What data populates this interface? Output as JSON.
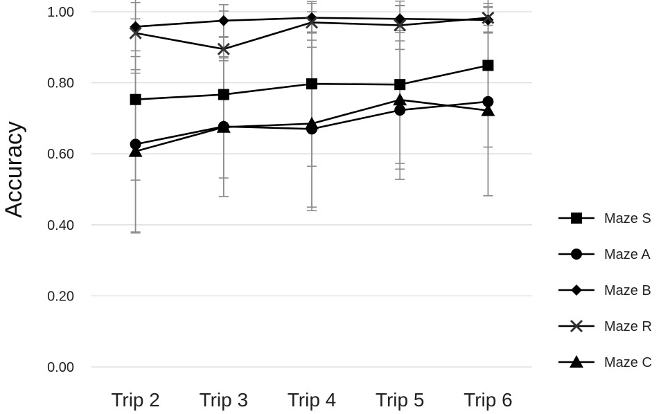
{
  "chart_data": {
    "type": "line",
    "title": "",
    "xlabel": "",
    "ylabel": "Accuracy",
    "categories": [
      "Trip 2",
      "Trip 3",
      "Trip 4",
      "Trip 5",
      "Trip 6"
    ],
    "ylim": [
      0,
      1
    ],
    "yticks": [
      "0.00",
      "0.20",
      "0.40",
      "0.60",
      "0.80",
      "1.00"
    ],
    "grid": "horizontal",
    "legend_position": "right",
    "series": [
      {
        "name": "Maze S",
        "marker": "square",
        "values": [
          0.753,
          0.767,
          0.797,
          0.795,
          0.849
        ],
        "error": [
          0.227,
          0.235,
          0.232,
          0.222,
          0.23
        ]
      },
      {
        "name": "Maze A",
        "marker": "circle",
        "values": [
          0.627,
          0.677,
          0.67,
          0.723,
          0.747
        ],
        "error": [
          0.247,
          0.197,
          0.23,
          0.195,
          0.265
        ]
      },
      {
        "name": "Maze B",
        "marker": "diamond",
        "values": [
          0.958,
          0.975,
          0.983,
          0.98,
          0.977
        ],
        "error": [
          0.068,
          0.045,
          0.04,
          0.038,
          0.037
        ]
      },
      {
        "name": "Maze R",
        "marker": "x",
        "values": [
          0.94,
          0.895,
          0.97,
          0.962,
          0.983
        ],
        "error": [
          0.113,
          0.033,
          0.03,
          0.068,
          0.04
        ]
      },
      {
        "name": "Maze C",
        "marker": "triangle",
        "values": [
          0.607,
          0.675,
          0.685,
          0.752,
          0.722
        ],
        "error": [
          0.23,
          0.195,
          0.235,
          0.195,
          0.24
        ]
      }
    ],
    "colors": {
      "line": "#000000",
      "errorbar": "#8c8c8c",
      "grid": "#d9d9d9"
    }
  }
}
